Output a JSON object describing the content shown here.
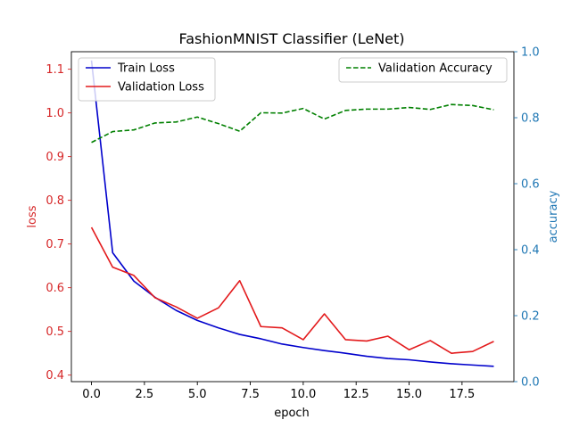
{
  "chart_data": {
    "type": "line",
    "title": "FashionMNIST Classifier (LeNet)",
    "xlabel": "epoch",
    "ylabel_left": "loss",
    "ylabel_right": "accuracy",
    "xlim": [
      -0.95,
      19.95
    ],
    "ylim_left": [
      0.385,
      1.14
    ],
    "ylim_right": [
      0.0,
      1.0
    ],
    "x_ticks": [
      0,
      2.5,
      5,
      7.5,
      10,
      12.5,
      15,
      17.5
    ],
    "x_tick_labels": [
      "0.0",
      "2.5",
      "5.0",
      "7.5",
      "10.0",
      "12.5",
      "15.0",
      "17.5"
    ],
    "y_left_ticks": [
      0.4,
      0.5,
      0.6,
      0.7,
      0.8,
      0.9,
      1.0,
      1.1
    ],
    "y_left_tick_labels": [
      "0.4",
      "0.5",
      "0.6",
      "0.7",
      "0.8",
      "0.9",
      "1.0",
      "1.1"
    ],
    "y_right_ticks": [
      0.0,
      0.2,
      0.4,
      0.6,
      0.8,
      1.0
    ],
    "y_right_tick_labels": [
      "0.0",
      "0.2",
      "0.4",
      "0.6",
      "0.8",
      "1.0"
    ],
    "left_axis_color": "#d62728",
    "right_axis_color": "#1f77b4",
    "grid": false,
    "x": [
      0,
      1,
      2,
      3,
      4,
      5,
      6,
      7,
      8,
      9,
      10,
      11,
      12,
      13,
      14,
      15,
      16,
      17,
      18,
      19
    ],
    "series": [
      {
        "name": "Train Loss",
        "axis": "left",
        "color": "#0000cc",
        "style": "solid",
        "values": [
          1.12,
          0.68,
          0.615,
          0.578,
          0.548,
          0.525,
          0.508,
          0.493,
          0.483,
          0.471,
          0.463,
          0.456,
          0.45,
          0.443,
          0.438,
          0.435,
          0.43,
          0.426,
          0.423,
          0.42
        ]
      },
      {
        "name": "Validation Loss",
        "axis": "left",
        "color": "#e31a1c",
        "style": "solid",
        "values": [
          0.738,
          0.647,
          0.628,
          0.577,
          0.556,
          0.53,
          0.554,
          0.616,
          0.511,
          0.508,
          0.481,
          0.54,
          0.481,
          0.478,
          0.489,
          0.458,
          0.479,
          0.45,
          0.454,
          0.477
        ]
      },
      {
        "name": "Validation Accuracy",
        "axis": "right",
        "color": "#008000",
        "style": "dashed",
        "values": [
          0.725,
          0.758,
          0.763,
          0.784,
          0.787,
          0.802,
          0.782,
          0.759,
          0.815,
          0.814,
          0.828,
          0.796,
          0.822,
          0.826,
          0.826,
          0.831,
          0.825,
          0.84,
          0.837,
          0.824
        ]
      }
    ],
    "legends": [
      {
        "placement": "upper-left",
        "entries": [
          "Train Loss",
          "Validation Loss"
        ]
      },
      {
        "placement": "upper-right",
        "entries": [
          "Validation Accuracy"
        ]
      }
    ]
  }
}
